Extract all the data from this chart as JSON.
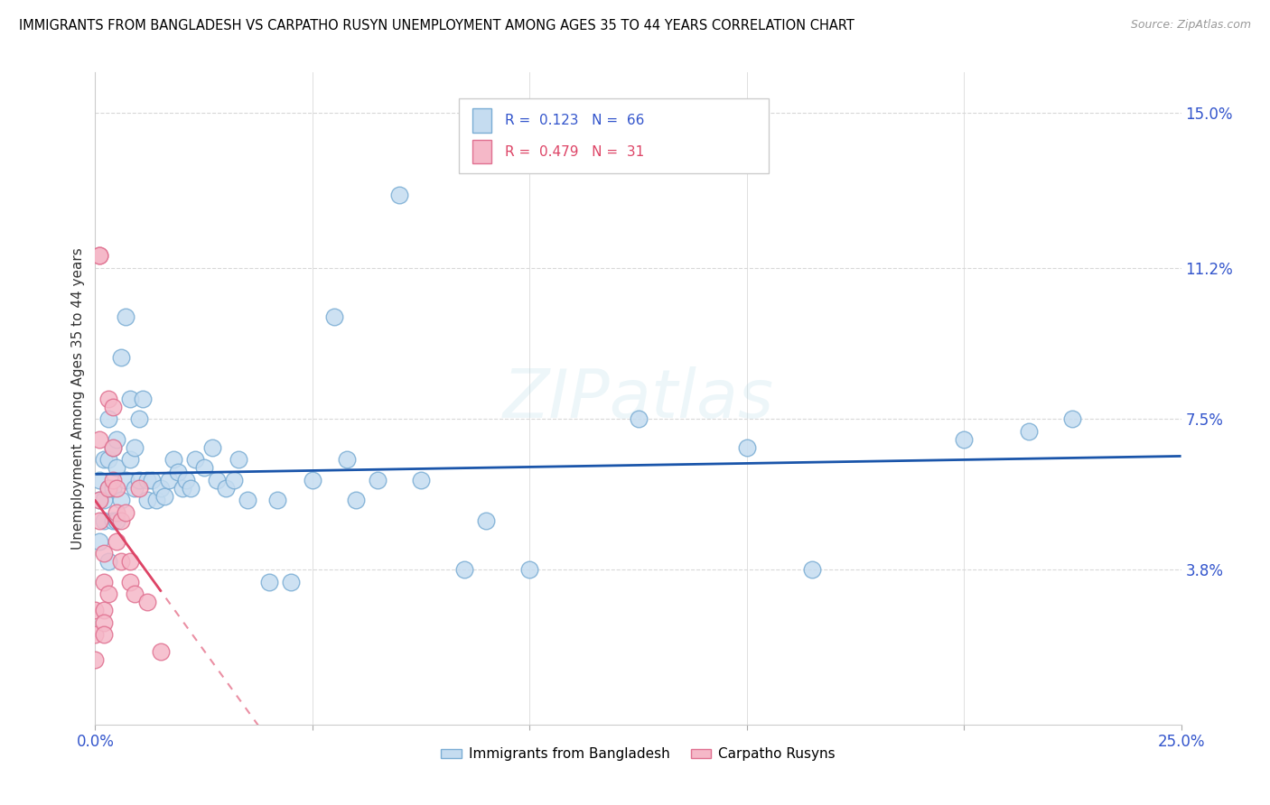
{
  "title": "IMMIGRANTS FROM BANGLADESH VS CARPATHO RUSYN UNEMPLOYMENT AMONG AGES 35 TO 44 YEARS CORRELATION CHART",
  "source": "Source: ZipAtlas.com",
  "ylabel": "Unemployment Among Ages 35 to 44 years",
  "xlim": [
    0,
    0.25
  ],
  "ylim": [
    0,
    0.16
  ],
  "ytick_labels_right": [
    "3.8%",
    "7.5%",
    "11.2%",
    "15.0%"
  ],
  "ytick_positions_right": [
    0.038,
    0.075,
    0.112,
    0.15
  ],
  "r_bangladesh": 0.123,
  "n_bangladesh": 66,
  "r_carpatho": 0.479,
  "n_carpatho": 31,
  "color_bangladesh_fill": "#c5dcf0",
  "color_bangladesh_edge": "#7aadd4",
  "color_carpatho_fill": "#f5b8c8",
  "color_carpatho_edge": "#e07090",
  "color_trend_bangladesh": "#1a55aa",
  "color_trend_carpatho": "#dd4466",
  "watermark_zip": "ZIP",
  "watermark_atlas": "atlas",
  "bangladesh_x": [
    0.001,
    0.001,
    0.001,
    0.002,
    0.002,
    0.002,
    0.003,
    0.003,
    0.003,
    0.003,
    0.004,
    0.004,
    0.004,
    0.005,
    0.005,
    0.005,
    0.006,
    0.006,
    0.007,
    0.007,
    0.008,
    0.008,
    0.009,
    0.009,
    0.01,
    0.01,
    0.011,
    0.012,
    0.012,
    0.013,
    0.014,
    0.015,
    0.016,
    0.017,
    0.018,
    0.019,
    0.02,
    0.021,
    0.022,
    0.023,
    0.025,
    0.027,
    0.028,
    0.03,
    0.032,
    0.033,
    0.035,
    0.04,
    0.042,
    0.045,
    0.05,
    0.055,
    0.058,
    0.06,
    0.065,
    0.07,
    0.075,
    0.085,
    0.09,
    0.1,
    0.125,
    0.15,
    0.165,
    0.2,
    0.215,
    0.225
  ],
  "bangladesh_y": [
    0.06,
    0.055,
    0.045,
    0.065,
    0.055,
    0.05,
    0.075,
    0.065,
    0.058,
    0.04,
    0.068,
    0.058,
    0.05,
    0.07,
    0.063,
    0.05,
    0.09,
    0.055,
    0.1,
    0.06,
    0.08,
    0.065,
    0.068,
    0.058,
    0.075,
    0.06,
    0.08,
    0.06,
    0.055,
    0.06,
    0.055,
    0.058,
    0.056,
    0.06,
    0.065,
    0.062,
    0.058,
    0.06,
    0.058,
    0.065,
    0.063,
    0.068,
    0.06,
    0.058,
    0.06,
    0.065,
    0.055,
    0.035,
    0.055,
    0.035,
    0.06,
    0.1,
    0.065,
    0.055,
    0.06,
    0.13,
    0.06,
    0.038,
    0.05,
    0.038,
    0.075,
    0.068,
    0.038,
    0.07,
    0.072,
    0.075
  ],
  "carpatho_x": [
    0.0,
    0.0,
    0.0,
    0.001,
    0.001,
    0.001,
    0.001,
    0.001,
    0.002,
    0.002,
    0.002,
    0.002,
    0.002,
    0.003,
    0.003,
    0.003,
    0.004,
    0.004,
    0.004,
    0.005,
    0.005,
    0.005,
    0.006,
    0.006,
    0.007,
    0.008,
    0.008,
    0.009,
    0.01,
    0.012,
    0.015
  ],
  "carpatho_y": [
    0.028,
    0.022,
    0.016,
    0.115,
    0.115,
    0.07,
    0.055,
    0.05,
    0.042,
    0.035,
    0.028,
    0.025,
    0.022,
    0.08,
    0.058,
    0.032,
    0.078,
    0.068,
    0.06,
    0.058,
    0.052,
    0.045,
    0.05,
    0.04,
    0.052,
    0.04,
    0.035,
    0.032,
    0.058,
    0.03,
    0.018
  ]
}
